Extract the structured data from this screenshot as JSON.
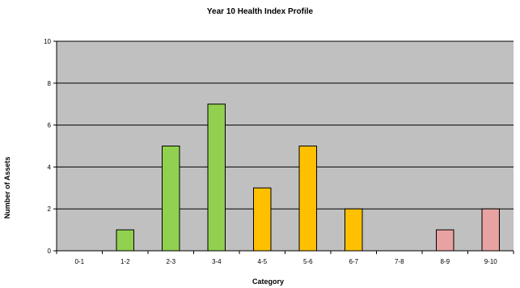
{
  "chart_data": {
    "type": "bar",
    "title": "Year 10 Health Index Profile",
    "xlabel": "Category",
    "ylabel": "Number of Assets",
    "categories": [
      "0-1",
      "1-2",
      "2-3",
      "3-4",
      "4-5",
      "5-6",
      "6-7",
      "7-8",
      "8-9",
      "9-10"
    ],
    "values": [
      0,
      1,
      5,
      7,
      3,
      5,
      2,
      0,
      1,
      2
    ],
    "bar_colors": [
      "#92d050",
      "#92d050",
      "#92d050",
      "#92d050",
      "#ffc000",
      "#ffc000",
      "#ffc000",
      "#e8a2a2",
      "#e8a2a2",
      "#e8a2a2"
    ],
    "ylim": [
      0,
      10
    ],
    "yticks": [
      0,
      2,
      4,
      6,
      8,
      10
    ],
    "grid": true,
    "plot_background": "#c0c0c0",
    "legend": "none"
  }
}
